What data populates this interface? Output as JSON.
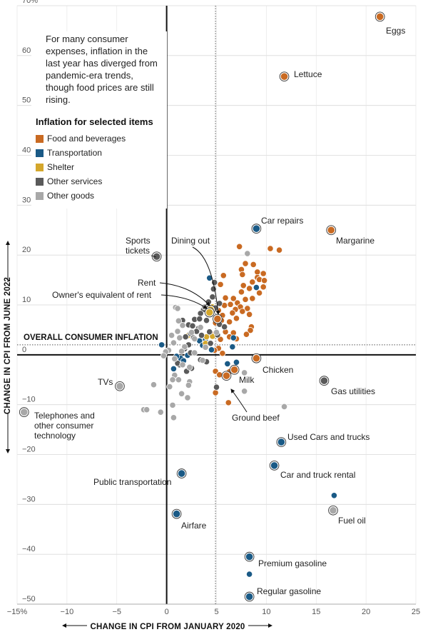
{
  "subtitle": "For many consumer expenses, inflation in the last year has diverged from pandemic-era trends, though food prices are still rising.",
  "legend": {
    "title": "Inflation for selected items",
    "items": [
      {
        "name": "Food and beverages",
        "color": "#c96a22"
      },
      {
        "name": "Transportation",
        "color": "#1a5a86"
      },
      {
        "name": "Shelter",
        "color": "#d4a72c"
      },
      {
        "name": "Other services",
        "color": "#5a5a5a"
      },
      {
        "name": "Other goods",
        "color": "#a8a8a8"
      }
    ]
  },
  "chart_data": {
    "type": "scatter",
    "xlabel": "CHANGE IN CPI FROM JANUARY 2020",
    "ylabel": "CHANGE IN CPI FROM JUNE 2022",
    "xlim": [
      -15,
      25
    ],
    "ylim": [
      -50,
      70
    ],
    "x_ticks": [
      {
        "value": -15,
        "label": "−15%"
      },
      {
        "value": -10,
        "label": "−10"
      },
      {
        "value": -5,
        "label": "−5"
      },
      {
        "value": 0,
        "label": "0"
      },
      {
        "value": 5,
        "label": "5"
      },
      {
        "value": 10,
        "label": "10"
      },
      {
        "value": 15,
        "label": "15"
      },
      {
        "value": 20,
        "label": "20"
      },
      {
        "value": 25,
        "label": "25"
      }
    ],
    "y_ticks": [
      {
        "value": 70,
        "label": "70%"
      },
      {
        "value": 60,
        "label": "60"
      },
      {
        "value": 50,
        "label": "50"
      },
      {
        "value": 40,
        "label": "40"
      },
      {
        "value": 30,
        "label": "30"
      },
      {
        "value": 20,
        "label": "20"
      },
      {
        "value": 10,
        "label": "10"
      },
      {
        "value": 0,
        "label": "0"
      },
      {
        "value": -10,
        "label": "−10"
      },
      {
        "value": -20,
        "label": "−20"
      },
      {
        "value": -30,
        "label": "−30"
      },
      {
        "value": -40,
        "label": "−40"
      },
      {
        "value": -50,
        "label": "−50"
      }
    ],
    "overall_inflation": {
      "label": "OVERALL CONSUMER INFLATION",
      "x": 4.9,
      "y": 2.0
    },
    "labeled_points": [
      {
        "label": "Eggs",
        "category": "Food and beverages",
        "x": 21.4,
        "y": 67.8
      },
      {
        "label": "Lettuce",
        "category": "Food and beverages",
        "x": 11.8,
        "y": 55.8
      },
      {
        "label": "Car repairs",
        "category": "Transportation",
        "x": 9.0,
        "y": 25.3
      },
      {
        "label": "Margarine",
        "category": "Food and beverages",
        "x": 16.5,
        "y": 25.0
      },
      {
        "label": "Sports tickets",
        "category": "Other services",
        "x": -1.0,
        "y": 19.7
      },
      {
        "label": "Dining out",
        "category": "Food and beverages",
        "x": 5.1,
        "y": 7.2
      },
      {
        "label": "Rent",
        "category": "Shelter",
        "x": 4.4,
        "y": 9.0
      },
      {
        "label": "Owner's equivalent of rent",
        "category": "Shelter",
        "x": 4.3,
        "y": 8.5
      },
      {
        "label": "TVs",
        "category": "Other goods",
        "x": -4.7,
        "y": -6.3
      },
      {
        "label": "Telephones and other consumer technology",
        "category": "Other goods",
        "x": -14.3,
        "y": -11.5
      },
      {
        "label": "Chicken",
        "category": "Food and beverages",
        "x": 9.0,
        "y": -0.7
      },
      {
        "label": "Milk",
        "category": "Food and beverages",
        "x": 6.8,
        "y": -3.0
      },
      {
        "label": "Ground beef",
        "category": "Food and beverages",
        "x": 6.0,
        "y": -4.2
      },
      {
        "label": "Gas utilities",
        "category": "Other services",
        "x": 15.8,
        "y": -5.2
      },
      {
        "label": "Used Cars and trucks",
        "category": "Transportation",
        "x": 11.5,
        "y": -17.5
      },
      {
        "label": "Car and truck rental",
        "category": "Transportation",
        "x": 10.8,
        "y": -22.2
      },
      {
        "label": "Public transportation",
        "category": "Transportation",
        "x": 1.5,
        "y": -23.8
      },
      {
        "label": "Fuel oil",
        "category": "Other goods",
        "x": 16.7,
        "y": -31.2
      },
      {
        "label": "Airfare",
        "category": "Transportation",
        "x": 1.0,
        "y": -31.9
      },
      {
        "label": "Premium gasoline",
        "category": "Transportation",
        "x": 8.3,
        "y": -40.5
      },
      {
        "label": "Regular gasoline",
        "category": "Transportation",
        "x": 8.3,
        "y": -48.5
      }
    ],
    "other_points": [
      {
        "c": "f",
        "x": 7.3,
        "y": 21.7
      },
      {
        "c": "f",
        "x": 10.4,
        "y": 21.3
      },
      {
        "c": "f",
        "x": 11.3,
        "y": 21.0
      },
      {
        "c": "f",
        "x": 7.9,
        "y": 18.3
      },
      {
        "c": "f",
        "x": 8.7,
        "y": 18.1
      },
      {
        "c": "f",
        "x": 7.5,
        "y": 17.1
      },
      {
        "c": "f",
        "x": 9.1,
        "y": 16.6
      },
      {
        "c": "f",
        "x": 9.7,
        "y": 16.3
      },
      {
        "c": "f",
        "x": 7.6,
        "y": 16.1
      },
      {
        "c": "f",
        "x": 5.7,
        "y": 15.9
      },
      {
        "c": "f",
        "x": 9.1,
        "y": 15.5
      },
      {
        "c": "f",
        "x": 9.3,
        "y": 15.1
      },
      {
        "c": "f",
        "x": 9.8,
        "y": 14.9
      },
      {
        "c": "f",
        "x": 8.6,
        "y": 14.6
      },
      {
        "c": "f",
        "x": 5.4,
        "y": 14.1
      },
      {
        "c": "f",
        "x": 7.7,
        "y": 13.9
      },
      {
        "c": "f",
        "x": 9.7,
        "y": 13.6
      },
      {
        "c": "f",
        "x": 8.3,
        "y": 13.3
      },
      {
        "c": "f",
        "x": 7.5,
        "y": 12.6
      },
      {
        "c": "f",
        "x": 9.3,
        "y": 12.4
      },
      {
        "c": "f",
        "x": 5.9,
        "y": 11.4
      },
      {
        "c": "f",
        "x": 6.7,
        "y": 11.3
      },
      {
        "c": "f",
        "x": 7.9,
        "y": 11.1
      },
      {
        "c": "f",
        "x": 8.6,
        "y": 11.3
      },
      {
        "c": "f",
        "x": 7.1,
        "y": 10.4
      },
      {
        "c": "f",
        "x": 6.4,
        "y": 10.1
      },
      {
        "c": "f",
        "x": 5.8,
        "y": 9.9
      },
      {
        "c": "f",
        "x": 7.4,
        "y": 9.6
      },
      {
        "c": "f",
        "x": 8.1,
        "y": 9.3
      },
      {
        "c": "f",
        "x": 6.9,
        "y": 9.1
      },
      {
        "c": "f",
        "x": 5.2,
        "y": 8.9
      },
      {
        "c": "f",
        "x": 7.6,
        "y": 8.7
      },
      {
        "c": "f",
        "x": 6.6,
        "y": 8.4
      },
      {
        "c": "f",
        "x": 8.3,
        "y": 8.1
      },
      {
        "c": "f",
        "x": 5.6,
        "y": 7.9
      },
      {
        "c": "f",
        "x": 7.0,
        "y": 7.3
      },
      {
        "c": "f",
        "x": 5.5,
        "y": 6.9
      },
      {
        "c": "f",
        "x": 6.3,
        "y": 6.6
      },
      {
        "c": "f",
        "x": 4.9,
        "y": 6.4
      },
      {
        "c": "f",
        "x": 8.5,
        "y": 5.6
      },
      {
        "c": "f",
        "x": 8.4,
        "y": 4.9
      },
      {
        "c": "f",
        "x": 5.9,
        "y": 4.6
      },
      {
        "c": "f",
        "x": 6.7,
        "y": 4.4
      },
      {
        "c": "f",
        "x": 4.4,
        "y": 4.4
      },
      {
        "c": "f",
        "x": 8.0,
        "y": 4.1
      },
      {
        "c": "f",
        "x": 6.3,
        "y": 3.6
      },
      {
        "c": "f",
        "x": 7.0,
        "y": 3.2
      },
      {
        "c": "f",
        "x": 5.4,
        "y": 3.1
      },
      {
        "c": "f",
        "x": 5.2,
        "y": 1.3
      },
      {
        "c": "f",
        "x": 4.8,
        "y": 0.9
      },
      {
        "c": "f",
        "x": 5.6,
        "y": 0.3
      },
      {
        "c": "f",
        "x": 4.9,
        "y": -3.3
      },
      {
        "c": "f",
        "x": 5.3,
        "y": -4.0
      },
      {
        "c": "f",
        "x": 6.3,
        "y": -3.4
      },
      {
        "c": "f",
        "x": 4.9,
        "y": -7.6
      },
      {
        "c": "f",
        "x": 6.2,
        "y": -9.6
      },
      {
        "c": "t",
        "x": 4.3,
        "y": 15.4
      },
      {
        "c": "t",
        "x": 9.0,
        "y": 13.5
      },
      {
        "c": "t",
        "x": 3.9,
        "y": 3.1
      },
      {
        "c": "t",
        "x": 6.7,
        "y": 3.4
      },
      {
        "c": "t",
        "x": 3.3,
        "y": 2.8
      },
      {
        "c": "t",
        "x": 6.6,
        "y": 1.6
      },
      {
        "c": "t",
        "x": 4.5,
        "y": 1.0
      },
      {
        "c": "t",
        "x": 1.4,
        "y": -0.7
      },
      {
        "c": "t",
        "x": 0.7,
        "y": -2.8
      },
      {
        "c": "t",
        "x": 2.1,
        "y": -0.1
      },
      {
        "c": "t",
        "x": 3.6,
        "y": 1.9
      },
      {
        "c": "t",
        "x": 6.1,
        "y": -1.8
      },
      {
        "c": "t",
        "x": 1.0,
        "y": -0.3
      },
      {
        "c": "t",
        "x": 7.0,
        "y": -1.5
      },
      {
        "c": "t",
        "x": 1.7,
        "y": -1.2
      },
      {
        "c": "t",
        "x": -0.5,
        "y": 2.0
      },
      {
        "c": "t",
        "x": 8.3,
        "y": -44.0
      },
      {
        "c": "t",
        "x": 16.8,
        "y": -28.2
      },
      {
        "c": "s",
        "x": 4.6,
        "y": 9.6
      },
      {
        "c": "s",
        "x": 4.2,
        "y": 8.7
      },
      {
        "c": "s",
        "x": 2.1,
        "y": 3.8
      },
      {
        "c": "s",
        "x": 4.6,
        "y": 3.7
      },
      {
        "c": "s",
        "x": 4.0,
        "y": 3.6
      },
      {
        "c": "s",
        "x": 3.9,
        "y": 2.3
      },
      {
        "c": "o",
        "x": 4.8,
        "y": 14.5
      },
      {
        "c": "o",
        "x": 4.7,
        "y": 13.2
      },
      {
        "c": "o",
        "x": 4.6,
        "y": 11.6
      },
      {
        "c": "o",
        "x": 5.3,
        "y": 10.3
      },
      {
        "c": "o",
        "x": 4.2,
        "y": 10.6
      },
      {
        "c": "o",
        "x": 3.7,
        "y": 9.1
      },
      {
        "c": "o",
        "x": 4.9,
        "y": 9.4
      },
      {
        "c": "o",
        "x": 3.4,
        "y": 8.3
      },
      {
        "c": "o",
        "x": 2.8,
        "y": 7.1
      },
      {
        "c": "o",
        "x": 3.3,
        "y": 7.2
      },
      {
        "c": "o",
        "x": 4.0,
        "y": 6.9
      },
      {
        "c": "o",
        "x": 5.3,
        "y": 6.1
      },
      {
        "c": "o",
        "x": 1.6,
        "y": 6.9
      },
      {
        "c": "o",
        "x": 2.2,
        "y": 6.0
      },
      {
        "c": "o",
        "x": 2.6,
        "y": 5.8
      },
      {
        "c": "o",
        "x": 3.2,
        "y": 5.3
      },
      {
        "c": "o",
        "x": 5.8,
        "y": 5.6
      },
      {
        "c": "o",
        "x": 4.3,
        "y": 4.6
      },
      {
        "c": "o",
        "x": 3.0,
        "y": 4.7
      },
      {
        "c": "o",
        "x": 2.4,
        "y": 4.3
      },
      {
        "c": "o",
        "x": 5.1,
        "y": 4.0
      },
      {
        "c": "o",
        "x": 1.9,
        "y": 3.6
      },
      {
        "c": "o",
        "x": 3.5,
        "y": 3.9
      },
      {
        "c": "o",
        "x": 2.7,
        "y": 3.4
      },
      {
        "c": "o",
        "x": 4.4,
        "y": 2.3
      },
      {
        "c": "o",
        "x": 2.2,
        "y": 2.0
      },
      {
        "c": "o",
        "x": 1.8,
        "y": 1.2
      },
      {
        "c": "o",
        "x": 2.4,
        "y": 0.4
      },
      {
        "c": "o",
        "x": 2.5,
        "y": -2.7
      },
      {
        "c": "o",
        "x": 2.0,
        "y": -3.3
      },
      {
        "c": "o",
        "x": 1.3,
        "y": -2.0
      },
      {
        "c": "o",
        "x": 1.1,
        "y": -1.7
      },
      {
        "c": "o",
        "x": 3.4,
        "y": -1.0
      },
      {
        "c": "o",
        "x": 4.0,
        "y": -1.4
      },
      {
        "c": "o",
        "x": 5.0,
        "y": -6.5
      },
      {
        "c": "g",
        "x": 8.1,
        "y": 20.3
      },
      {
        "c": "g",
        "x": 0.9,
        "y": 9.5
      },
      {
        "c": "g",
        "x": 1.1,
        "y": 9.3
      },
      {
        "c": "g",
        "x": 3.8,
        "y": 9.6
      },
      {
        "c": "g",
        "x": 1.2,
        "y": 6.8
      },
      {
        "c": "g",
        "x": 1.6,
        "y": 5.9
      },
      {
        "c": "g",
        "x": 3.4,
        "y": 5.5
      },
      {
        "c": "g",
        "x": 1.1,
        "y": 4.7
      },
      {
        "c": "g",
        "x": 2.5,
        "y": 4.5
      },
      {
        "c": "g",
        "x": 5.0,
        "y": 4.5
      },
      {
        "c": "g",
        "x": 0.5,
        "y": 3.9
      },
      {
        "c": "g",
        "x": 1.3,
        "y": 3.4
      },
      {
        "c": "g",
        "x": 2.8,
        "y": 3.2
      },
      {
        "c": "g",
        "x": 0.7,
        "y": 2.4
      },
      {
        "c": "g",
        "x": 1.8,
        "y": 1.6
      },
      {
        "c": "g",
        "x": 3.9,
        "y": 1.5
      },
      {
        "c": "g",
        "x": 0.2,
        "y": 0.9
      },
      {
        "c": "g",
        "x": -0.1,
        "y": 0.6
      },
      {
        "c": "g",
        "x": 1.5,
        "y": 0.7
      },
      {
        "c": "g",
        "x": 2.8,
        "y": 0.4
      },
      {
        "c": "g",
        "x": -0.3,
        "y": -0.2
      },
      {
        "c": "g",
        "x": 0.8,
        "y": -0.8
      },
      {
        "c": "g",
        "x": 3.6,
        "y": -1.1
      },
      {
        "c": "g",
        "x": 1.6,
        "y": -2.0
      },
      {
        "c": "g",
        "x": 2.3,
        "y": -2.5
      },
      {
        "c": "g",
        "x": 0.8,
        "y": -4.1
      },
      {
        "c": "g",
        "x": 0.6,
        "y": -5.0
      },
      {
        "c": "g",
        "x": 1.2,
        "y": -5.0
      },
      {
        "c": "g",
        "x": 2.3,
        "y": -5.4
      },
      {
        "c": "g",
        "x": 0.3,
        "y": -6.4
      },
      {
        "c": "g",
        "x": 2.2,
        "y": -6.1
      },
      {
        "c": "g",
        "x": 1.5,
        "y": -7.8
      },
      {
        "c": "g",
        "x": 2.1,
        "y": -8.6
      },
      {
        "c": "g",
        "x": 0.6,
        "y": -10.1
      },
      {
        "c": "g",
        "x": 0.7,
        "y": -12.6
      },
      {
        "c": "g",
        "x": -0.6,
        "y": -11.5
      },
      {
        "c": "g",
        "x": -2.3,
        "y": -11.0
      },
      {
        "c": "g",
        "x": -2.0,
        "y": -11.0
      },
      {
        "c": "g",
        "x": -1.3,
        "y": -6.0
      },
      {
        "c": "g",
        "x": 7.8,
        "y": -7.3
      },
      {
        "c": "g",
        "x": 7.8,
        "y": -3.6
      },
      {
        "c": "g",
        "x": 11.8,
        "y": -10.4
      }
    ]
  }
}
